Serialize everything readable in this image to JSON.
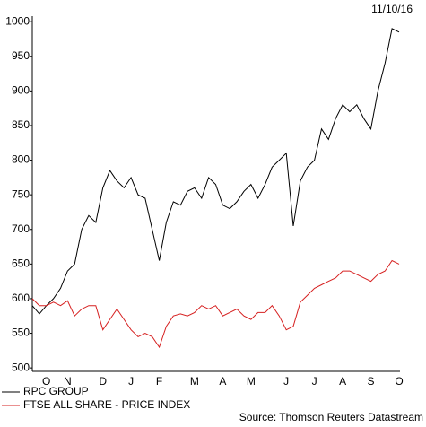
{
  "chart_data": {
    "type": "line",
    "date": "11/10/16",
    "source": "Source: Thomson Reuters Datastream",
    "categories": [
      null,
      null,
      "O",
      null,
      null,
      "N",
      null,
      null,
      null,
      null,
      "D",
      null,
      null,
      null,
      "J",
      null,
      null,
      null,
      "F",
      null,
      null,
      null,
      null,
      "M",
      null,
      null,
      null,
      "A",
      null,
      null,
      null,
      "M",
      null,
      null,
      null,
      null,
      "J",
      null,
      null,
      null,
      "J",
      null,
      null,
      null,
      "A",
      null,
      null,
      null,
      "S",
      null,
      null,
      null,
      "O"
    ],
    "series": [
      {
        "name": "RPC GROUP",
        "color": "#000000",
        "values": [
          590,
          578,
          590,
          600,
          615,
          640,
          650,
          700,
          720,
          710,
          760,
          785,
          770,
          760,
          775,
          750,
          745,
          700,
          655,
          710,
          740,
          735,
          755,
          760,
          745,
          775,
          765,
          735,
          730,
          740,
          755,
          765,
          745,
          765,
          790,
          800,
          810,
          705,
          770,
          790,
          800,
          845,
          830,
          860,
          880,
          870,
          880,
          860,
          845,
          900,
          940,
          990,
          985
        ]
      },
      {
        "name": "FTSE ALL SHARE - PRICE INDEX",
        "color": "#d62020",
        "values": [
          600,
          590,
          590,
          595,
          590,
          597,
          575,
          585,
          590,
          590,
          555,
          570,
          585,
          570,
          555,
          545,
          550,
          545,
          530,
          560,
          575,
          578,
          575,
          580,
          590,
          585,
          590,
          575,
          580,
          585,
          575,
          570,
          580,
          580,
          590,
          575,
          555,
          560,
          595,
          605,
          615,
          620,
          625,
          630,
          640,
          640,
          635,
          630,
          625,
          635,
          640,
          655,
          650
        ]
      }
    ],
    "ylim": [
      495,
      1008
    ],
    "yticks": [
      500,
      550,
      600,
      650,
      700,
      750,
      800,
      850,
      900,
      950,
      1000
    ],
    "grid": false
  }
}
